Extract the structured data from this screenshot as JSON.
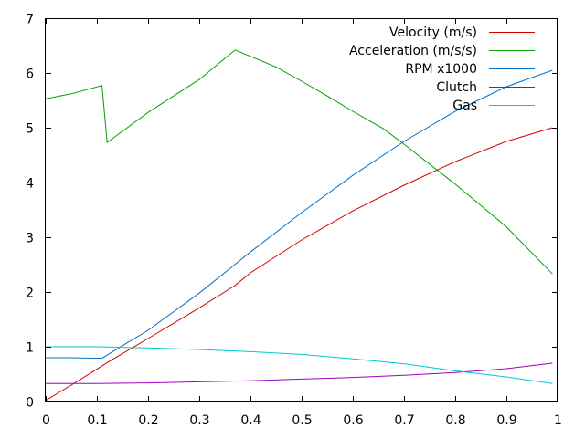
{
  "chart_data": {
    "type": "line",
    "xlim": [
      0,
      1
    ],
    "ylim": [
      0,
      7
    ],
    "x_ticks": [
      "0",
      "0.1",
      "0.2",
      "0.3",
      "0.4",
      "0.5",
      "0.6",
      "0.7",
      "0.8",
      "0.9",
      "1"
    ],
    "y_ticks": [
      "0",
      "1",
      "2",
      "3",
      "4",
      "5",
      "6",
      "7"
    ],
    "grid": false,
    "legend_position": "top-right",
    "series": [
      {
        "name": "Velocity (m/s)",
        "color": "#d00000",
        "points": [
          [
            0.0,
            0.02
          ],
          [
            0.05,
            0.3
          ],
          [
            0.1,
            0.59
          ],
          [
            0.12,
            0.71
          ],
          [
            0.2,
            1.15
          ],
          [
            0.3,
            1.71
          ],
          [
            0.37,
            2.12
          ],
          [
            0.4,
            2.35
          ],
          [
            0.5,
            2.95
          ],
          [
            0.6,
            3.48
          ],
          [
            0.7,
            3.95
          ],
          [
            0.8,
            4.38
          ],
          [
            0.9,
            4.75
          ],
          [
            0.99,
            5.0
          ]
        ]
      },
      {
        "name": "Acceleration (m/s/s)",
        "color": "#00a000",
        "points": [
          [
            0.0,
            5.53
          ],
          [
            0.05,
            5.62
          ],
          [
            0.11,
            5.77
          ],
          [
            0.12,
            4.73
          ],
          [
            0.2,
            5.28
          ],
          [
            0.3,
            5.88
          ],
          [
            0.37,
            6.42
          ],
          [
            0.45,
            6.11
          ],
          [
            0.5,
            5.85
          ],
          [
            0.55,
            5.58
          ],
          [
            0.6,
            5.3
          ],
          [
            0.66,
            4.98
          ],
          [
            0.7,
            4.7
          ],
          [
            0.8,
            3.97
          ],
          [
            0.9,
            3.19
          ],
          [
            0.99,
            2.33
          ]
        ]
      },
      {
        "name": "RPM x1000",
        "color": "#0070c8",
        "points": [
          [
            0.0,
            0.8
          ],
          [
            0.05,
            0.8
          ],
          [
            0.11,
            0.79
          ],
          [
            0.15,
            1.02
          ],
          [
            0.2,
            1.3
          ],
          [
            0.3,
            1.98
          ],
          [
            0.4,
            2.73
          ],
          [
            0.5,
            3.45
          ],
          [
            0.6,
            4.13
          ],
          [
            0.7,
            4.75
          ],
          [
            0.8,
            5.3
          ],
          [
            0.9,
            5.75
          ],
          [
            0.99,
            6.05
          ]
        ]
      },
      {
        "name": "Clutch",
        "color": "#a000c0",
        "points": [
          [
            0.0,
            0.33
          ],
          [
            0.1,
            0.33
          ],
          [
            0.2,
            0.34
          ],
          [
            0.3,
            0.36
          ],
          [
            0.4,
            0.38
          ],
          [
            0.5,
            0.41
          ],
          [
            0.6,
            0.44
          ],
          [
            0.7,
            0.48
          ],
          [
            0.8,
            0.53
          ],
          [
            0.9,
            0.6
          ],
          [
            0.99,
            0.7
          ]
        ]
      },
      {
        "name": "Gas",
        "color": "#00c8d0",
        "points": [
          [
            0.0,
            1.0
          ],
          [
            0.1,
            1.0
          ],
          [
            0.2,
            0.98
          ],
          [
            0.3,
            0.95
          ],
          [
            0.4,
            0.91
          ],
          [
            0.5,
            0.86
          ],
          [
            0.6,
            0.78
          ],
          [
            0.7,
            0.69
          ],
          [
            0.8,
            0.56
          ],
          [
            0.9,
            0.45
          ],
          [
            0.99,
            0.33
          ]
        ]
      }
    ]
  }
}
